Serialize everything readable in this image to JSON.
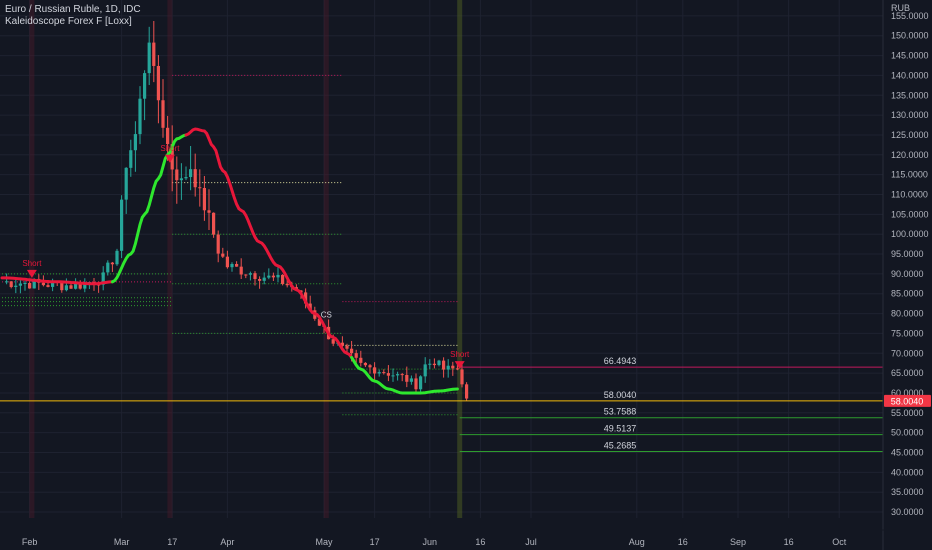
{
  "header": {
    "symbol_line": "Euro / Russian Ruble, 1D, IDC",
    "indicator_line": "Kaleidoscope Forex F [Loxx]"
  },
  "colors": {
    "background": "#131722",
    "bull": "#26a69a",
    "bear": "#ef5350",
    "ma_up": "#2ee82e",
    "ma_down": "#e8173a",
    "level_red": "#c2185b",
    "level_green": "#2e9c2e",
    "last_price": "#f0b90b",
    "label_bg": "#f23645"
  },
  "chart_data": {
    "type": "candlestick",
    "y_axis": {
      "unit": "RUB",
      "min": 28.5,
      "max": 159,
      "ticks": [
        "30.0000",
        "35.0000",
        "40.0000",
        "45.0000",
        "50.0000",
        "55.0000",
        "60.0000",
        "65.0000",
        "70.0000",
        "75.0000",
        "80.0000",
        "85.0000",
        "90.0000",
        "95.0000",
        "100.0000",
        "105.0000",
        "110.0000",
        "115.0000",
        "120.0000",
        "125.0000",
        "130.0000",
        "135.0000",
        "140.0000",
        "145.0000",
        "150.0000",
        "155.0000"
      ]
    },
    "x_axis": {
      "ticks": [
        {
          "label": "Feb",
          "bar": 6
        },
        {
          "label": "Mar",
          "bar": 26
        },
        {
          "label": "17",
          "bar": 37
        },
        {
          "label": "Apr",
          "bar": 49
        },
        {
          "label": "May",
          "bar": 70
        },
        {
          "label": "17",
          "bar": 81
        },
        {
          "label": "Jun",
          "bar": 93
        },
        {
          "label": "16",
          "bar": 104
        },
        {
          "label": "Jul",
          "bar": 115
        },
        {
          "label": "Aug",
          "bar": 138
        },
        {
          "label": "16",
          "bar": 148
        },
        {
          "label": "Sep",
          "bar": 160
        },
        {
          "label": "16",
          "bar": 171
        },
        {
          "label": "Oct",
          "bar": 182
        }
      ],
      "bar_count": 184
    },
    "last_price": "58.0040",
    "signals": [
      {
        "text": "Short",
        "bar": 6.5,
        "price": 90
      },
      {
        "text": "Short",
        "bar": 36.5,
        "price": 119
      },
      {
        "text": "CS",
        "bar": 70.5,
        "price": 77
      },
      {
        "text": "Short",
        "bar": 99.5,
        "price": 67
      }
    ],
    "levels": [
      {
        "label": "66.4943",
        "value": 66.4943
      },
      {
        "label": "58.0040",
        "value": 58.004
      },
      {
        "label": "53.7588",
        "value": 53.7588
      },
      {
        "label": "49.5137",
        "value": 49.5137
      },
      {
        "label": "45.2685",
        "value": 45.2685
      }
    ]
  }
}
